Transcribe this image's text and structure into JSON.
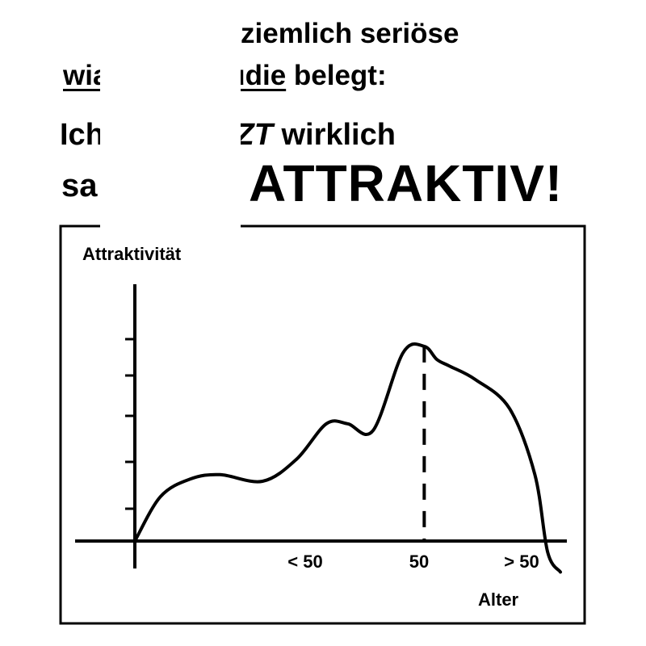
{
  "headline": {
    "line1": "ziemlich seriöse",
    "line2_start": "wi",
    "line2_underlined": "aftliche Studie",
    "line2_end": " belegt:",
    "line3_start": "Ich",
    "line3_italic": "NAU JETZT",
    "line3_end": " wirklich",
    "line4_start": "sa",
    "line4_big": "ATTRAKTIV!"
  },
  "chart_data": {
    "type": "line",
    "ylabel": "Attraktivität",
    "xlabel": "Alter",
    "tick_labels": [
      "< 50",
      "50",
      "> 50"
    ],
    "x_scale": "categorical (qualitative age axis)",
    "series": [
      {
        "x_fraction": [
          0,
          0.06,
          0.13,
          0.2,
          0.3,
          0.38,
          0.45,
          0.5,
          0.56,
          0.63,
          0.68,
          0.71,
          0.74,
          0.8,
          0.88,
          0.94,
          0.97,
          1.0
        ],
        "y_fraction": [
          0.0,
          0.2,
          0.28,
          0.3,
          0.27,
          0.37,
          0.53,
          0.53,
          0.5,
          0.85,
          0.88,
          0.82,
          0.79,
          0.73,
          0.6,
          0.3,
          -0.05,
          -0.14
        ],
        "color": "#000000"
      }
    ],
    "peak_marker": {
      "x_label": "50",
      "style": "dashed"
    },
    "y_ticks": 5,
    "grid": false,
    "legend": "none"
  }
}
